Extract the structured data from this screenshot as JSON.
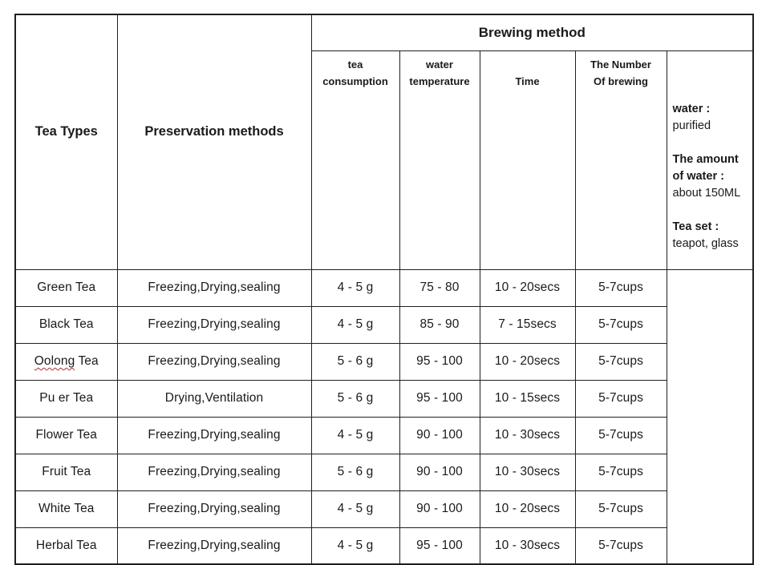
{
  "page": {
    "background": "#ffffff"
  },
  "colors": {
    "border": "#1f1f1f",
    "text": "#1a1a1a",
    "spellcheck_underline": "#b03030"
  },
  "table": {
    "columns": {
      "tea_types": "Tea Types",
      "preservation": "Preservation methods",
      "brewing_group": "Brewing method",
      "sub_headers": [
        {
          "id": "tea-consumption",
          "lines": [
            "tea",
            "consumption"
          ]
        },
        {
          "id": "water-temperature",
          "lines": [
            "water",
            "temperature"
          ]
        },
        {
          "id": "time",
          "lines": [
            "Time"
          ]
        },
        {
          "id": "number-of-brewing",
          "lines": [
            "The Number",
            "Of brewing"
          ]
        }
      ]
    },
    "rows": [
      {
        "type": "Green Tea",
        "preservation": "Freezing,Drying,sealing",
        "consumption": "4 - 5 g",
        "temperature": "75 - 80",
        "time": "10 - 20secs",
        "brews": "5-7cups"
      },
      {
        "type": "Black Tea",
        "preservation": "Freezing,Drying,sealing",
        "consumption": "4 - 5 g",
        "temperature": "85 - 90",
        "time": "7 - 15secs",
        "brews": "5-7cups"
      },
      {
        "type": "Oolong Tea",
        "misspelled_part": "Oolong",
        "preservation": "Freezing,Drying,sealing",
        "consumption": "5 - 6 g",
        "temperature": "95 - 100",
        "time": "10 - 20secs",
        "brews": "5-7cups"
      },
      {
        "type": "Pu er Tea",
        "preservation": "Drying,Ventilation",
        "consumption": "5 - 6 g",
        "temperature": "95 - 100",
        "time": "10 - 15secs",
        "brews": "5-7cups"
      },
      {
        "type": "Flower Tea",
        "preservation": "Freezing,Drying,sealing",
        "consumption": "4 - 5 g",
        "temperature": "90 - 100",
        "time": "10 - 30secs",
        "brews": "5-7cups"
      },
      {
        "type": "Fruit Tea",
        "preservation": "Freezing,Drying,sealing",
        "consumption": "5 - 6 g",
        "temperature": "90 - 100",
        "time": "10 - 30secs",
        "brews": "5-7cups"
      },
      {
        "type": "White Tea",
        "preservation": "Freezing,Drying,sealing",
        "consumption": "4 - 5 g",
        "temperature": "90 - 100",
        "time": "10 - 20secs",
        "brews": "5-7cups"
      },
      {
        "type": "Herbal Tea",
        "preservation": "Freezing,Drying,sealing",
        "consumption": "4 - 5 g",
        "temperature": "95 - 100",
        "time": "10 - 30secs",
        "brews": "5-7cups"
      }
    ],
    "notes": [
      {
        "label": "water :",
        "value": "purified"
      },
      {
        "label": "The amount of water :",
        "value": "about 150ML"
      },
      {
        "label": "Tea set :",
        "value": "teapot, glass"
      }
    ]
  }
}
